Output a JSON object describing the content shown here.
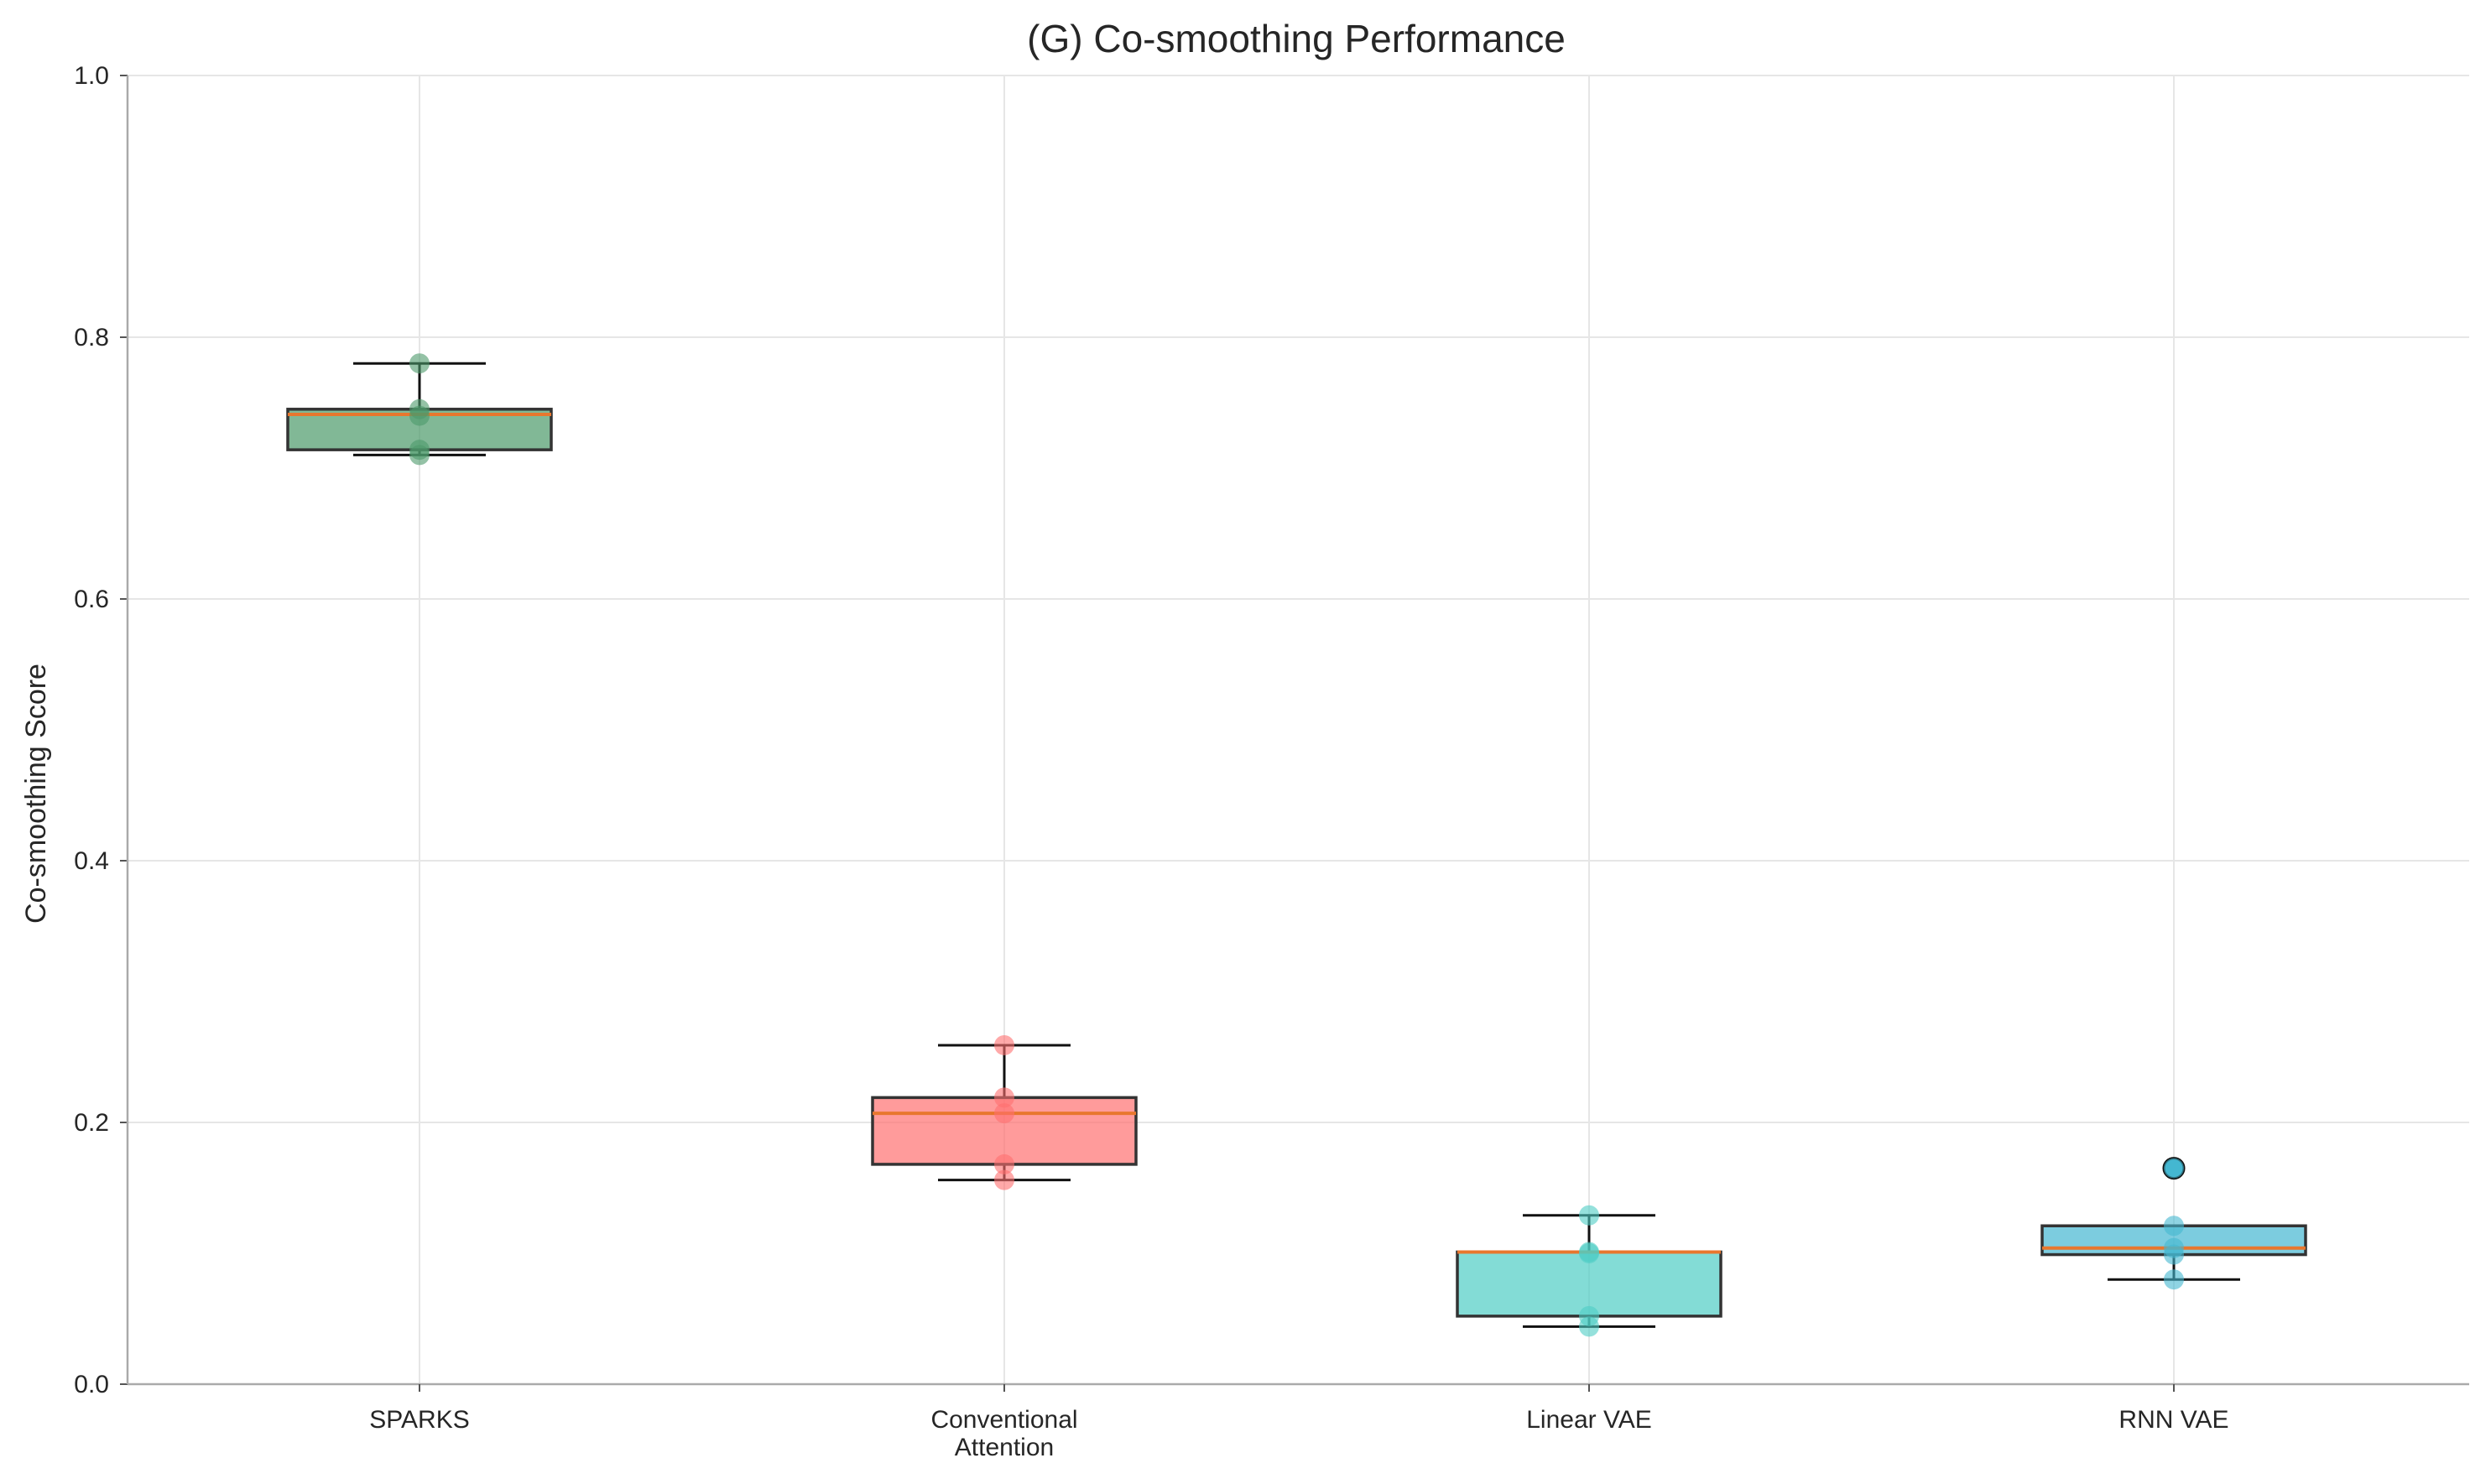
{
  "chart_data": {
    "type": "box",
    "title": "(G) Co-smoothing Performance",
    "xlabel": "",
    "ylabel": "Co-smoothing Score",
    "ylim": [
      0,
      1
    ],
    "yticks": [
      "0.0",
      "0.2",
      "0.4",
      "0.6",
      "0.8",
      "1.0"
    ],
    "grid": true,
    "legend": "none",
    "categories": [
      [
        "SPARKS"
      ],
      [
        "Conventional",
        "Attention"
      ],
      [
        "Linear VAE"
      ],
      [
        "RNN VAE"
      ]
    ],
    "colors": [
      "#4c9a6a",
      "#ff7070",
      "#4ecdc4",
      "#45b7d1"
    ],
    "median_color": "#e8772e",
    "boxes": [
      {
        "whisker_low": 0.71,
        "q1": 0.714,
        "median": 0.741,
        "q3": 0.745,
        "whisker_high": 0.78,
        "outliers": []
      },
      {
        "whisker_low": 0.156,
        "q1": 0.168,
        "median": 0.207,
        "q3": 0.219,
        "whisker_high": 0.259,
        "outliers": []
      },
      {
        "whisker_low": 0.044,
        "q1": 0.052,
        "median": 0.101,
        "q3": 0.101,
        "whisker_high": 0.129,
        "outliers": []
      },
      {
        "whisker_low": 0.08,
        "q1": 0.099,
        "median": 0.104,
        "q3": 0.121,
        "whisker_high": 0.121,
        "outliers": [
          0.165
        ]
      }
    ],
    "points": [
      [
        0.78,
        0.745,
        0.74,
        0.714,
        0.71
      ],
      [
        0.259,
        0.219,
        0.207,
        0.168,
        0.156
      ],
      [
        0.129,
        0.101,
        0.1,
        0.052,
        0.044
      ],
      [
        0.121,
        0.104,
        0.099,
        0.08,
        0.165
      ]
    ]
  }
}
